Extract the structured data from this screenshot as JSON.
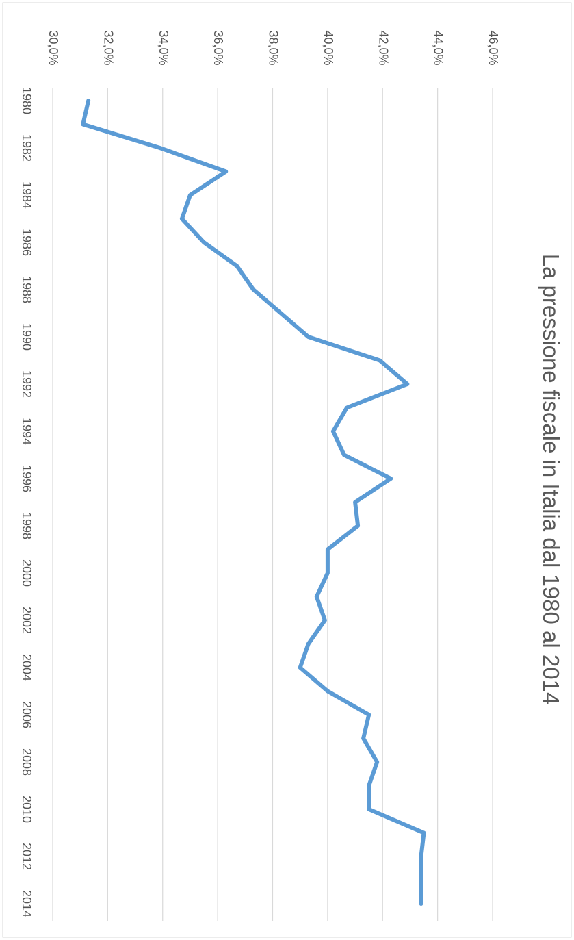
{
  "chart_data": {
    "type": "line",
    "title": "La pressione fiscale in Italia dal 1980 al 2014",
    "xlabel": "",
    "ylabel": "",
    "x_tick_labels": [
      "1980",
      "1982",
      "1984",
      "1986",
      "1988",
      "1990",
      "1992",
      "1994",
      "1996",
      "1998",
      "2000",
      "2002",
      "2004",
      "2006",
      "2008",
      "2010",
      "2012",
      "2014"
    ],
    "y_tick_labels": [
      "30,0%",
      "32,0%",
      "34,0%",
      "36,0%",
      "38,0%",
      "40,0%",
      "42,0%",
      "44,0%",
      "46,0%"
    ],
    "ylim": [
      30,
      46
    ],
    "grid": true,
    "legend": "none",
    "orientation": "rotated 90° clockwise",
    "series": [
      {
        "color": "#5b9bd5",
        "x": [
          1980,
          1981,
          1982,
          1983,
          1984,
          1985,
          1986,
          1987,
          1988,
          1989,
          1990,
          1991,
          1992,
          1993,
          1994,
          1995,
          1996,
          1997,
          1998,
          1999,
          2000,
          2001,
          2002,
          2003,
          2004,
          2005,
          2006,
          2007,
          2008,
          2009,
          2010,
          2011,
          2012,
          2013,
          2014
        ],
        "values": [
          31.3,
          31.1,
          33.9,
          36.3,
          35.0,
          34.7,
          35.5,
          36.7,
          37.3,
          38.3,
          39.3,
          41.9,
          42.9,
          40.7,
          40.2,
          40.6,
          42.3,
          41.0,
          41.1,
          40.0,
          40.0,
          39.6,
          39.9,
          39.3,
          39.0,
          40.0,
          41.5,
          41.3,
          41.8,
          41.5,
          41.5,
          43.5,
          43.4,
          43.4,
          43.4
        ]
      }
    ]
  }
}
